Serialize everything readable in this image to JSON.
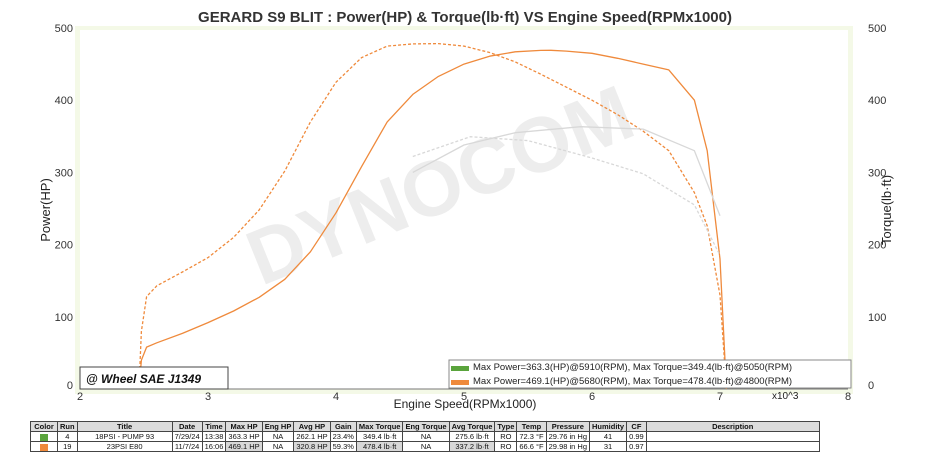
{
  "chart_data": {
    "type": "line",
    "title": "GERARD S9 BLIT : Power(HP) & Torque(lb·ft) VS Engine Speed(RPMx1000)",
    "xlabel": "Engine Speed(RPMx1000)",
    "x_multiplier_label": "x10^3",
    "ylabel_left": "Power(HP)",
    "ylabel_right": "Torque(lb·ft)",
    "xlim": [
      2,
      8
    ],
    "ylim": [
      0,
      500
    ],
    "x_ticks": [
      2,
      3,
      4,
      5,
      6,
      7,
      8
    ],
    "y_ticks": [
      0,
      100,
      200,
      300,
      400,
      500
    ],
    "watermark": "DYNOCOM",
    "standard_label": "@ Wheel SAE J1349",
    "legend": [
      {
        "color": "#5aa43c",
        "text": "Max Power=363.3(HP)@5910(RPM), Max Torque=349.4(lb·ft)@5050(RPM)"
      },
      {
        "color": "#ef8a3c",
        "text": "Max Power=469.1(HP)@5680(RPM), Max Torque=478.4(lb·ft)@4800(RPM)"
      }
    ],
    "series": [
      {
        "color": "#ef8a3c",
        "dash": "",
        "x": [
          2.46,
          2.48,
          2.52,
          2.6,
          2.8,
          3.0,
          3.2,
          3.4,
          3.6,
          3.8,
          4.0,
          4.2,
          4.4,
          4.6,
          4.8,
          5.0,
          5.2,
          5.4,
          5.6,
          5.68,
          5.8,
          6.0,
          6.2,
          6.4,
          6.6,
          6.8,
          6.9,
          7.0,
          7.05
        ],
        "values": [
          0,
          40,
          58,
          64,
          77,
          92,
          108,
          127,
          152,
          190,
          244,
          308,
          370,
          408,
          433,
          450,
          461,
          467,
          469,
          469.1,
          468,
          465,
          458,
          450,
          442,
          400,
          330,
          180,
          0
        ]
      },
      {
        "color": "#ef8a3c",
        "dash": "3 2",
        "x": [
          2.46,
          2.48,
          2.52,
          2.6,
          2.8,
          3.0,
          3.2,
          3.4,
          3.6,
          3.8,
          4.0,
          4.2,
          4.4,
          4.6,
          4.8,
          5.0,
          5.2,
          5.4,
          5.6,
          5.8,
          6.0,
          6.2,
          6.4,
          6.6,
          6.8,
          6.9,
          7.0,
          7.05
        ],
        "values": [
          0,
          80,
          128,
          143,
          162,
          182,
          210,
          248,
          302,
          370,
          425,
          459,
          475,
          478,
          478.4,
          475,
          466,
          453,
          436,
          418,
          400,
          380,
          357,
          330,
          272,
          226,
          130,
          0
        ]
      },
      {
        "color": "#d8d8d8",
        "dash": "",
        "x": [
          4.6,
          5.0,
          5.4,
          5.91,
          6.4,
          6.8,
          7.0
        ],
        "values": [
          300,
          338,
          355,
          363.3,
          360,
          330,
          240
        ]
      },
      {
        "color": "#d8d8d8",
        "dash": "3 2",
        "x": [
          4.6,
          5.05,
          5.5,
          6.0,
          6.4,
          6.8,
          7.0
        ],
        "values": [
          322,
          349.4,
          344,
          320,
          298,
          255,
          185
        ]
      }
    ]
  },
  "results_table": {
    "headers": [
      "Color",
      "Run",
      "Title",
      "Date",
      "Time",
      "Max HP",
      "Eng HP",
      "Avg HP",
      "Gain",
      "Max Torque",
      "Eng Torque",
      "Avg Torque",
      "Type",
      "Temp",
      "Pressure",
      "Humidity",
      "CF",
      "Description"
    ],
    "rows": [
      {
        "color": "#5aa43c",
        "cells": [
          "4",
          "18PSI - PUMP 93",
          "7/29/24",
          "13:38",
          "363.3 HP",
          "NA",
          "262.1 HP",
          "23.4%",
          "349.4 lb·ft",
          "NA",
          "275.6 lb·ft",
          "RO",
          "72.3 °F",
          "29.76 in Hg",
          "41",
          "0.99",
          ""
        ]
      },
      {
        "color": "#ef8a3c",
        "cells": [
          "19",
          "23PSI E80",
          "11/7/24",
          "16:06",
          "469.1 HP",
          "NA",
          "320.8 HP",
          "59.3%",
          "478.4 lb·ft",
          "NA",
          "337.2 lb·ft",
          "RO",
          "66.6 °F",
          "29.98 in Hg",
          "31",
          "0.97",
          ""
        ]
      }
    ]
  }
}
